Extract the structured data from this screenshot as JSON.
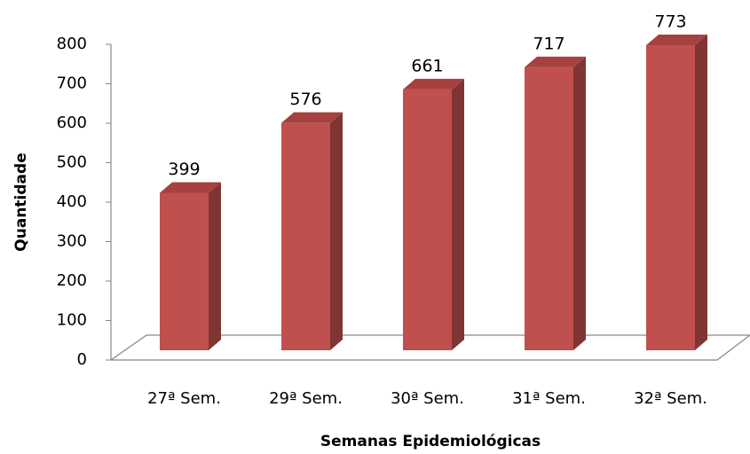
{
  "chart_data": {
    "type": "bar3d",
    "x_label": "Semanas Epidemiológicas",
    "y_label": "Quantidade",
    "categories": [
      "27ª Sem.",
      "29ª Sem.",
      "30ª Sem.",
      "31ª Sem.",
      "32ª Sem."
    ],
    "values": [
      399,
      576,
      661,
      717,
      773
    ],
    "color": "#c0504d",
    "ylim": [
      0,
      800
    ],
    "yticks": [
      0,
      100,
      200,
      300,
      400,
      500,
      600,
      700,
      800
    ]
  }
}
